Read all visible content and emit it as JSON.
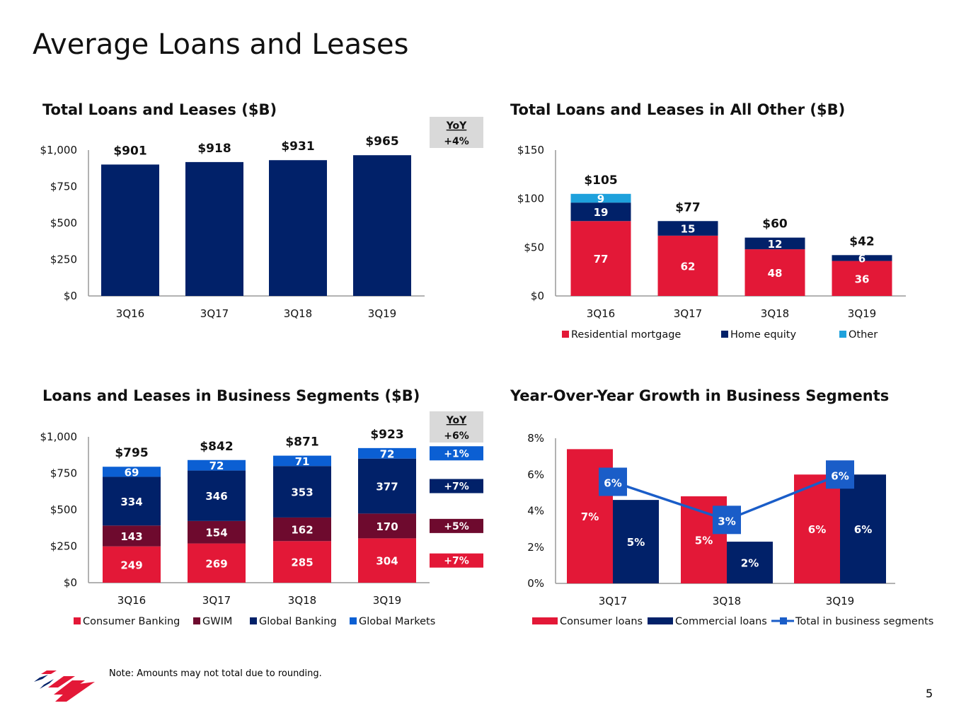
{
  "page": {
    "title": "Average Loans and Leases",
    "note": "Note: Amounts may not total due to rounding.",
    "page_number": "5"
  },
  "colors": {
    "red": "#e31837",
    "navy": "#012169",
    "maroon": "#6e0a2e",
    "blue": "#0b5fd3",
    "light_blue": "#1ea1dc",
    "line_blue": "#1a5dc8",
    "yoy_gray": "#d9d9d9"
  },
  "chart_data": [
    {
      "type": "bar",
      "title": "Total Loans and Leases ($B)",
      "categories": [
        "3Q16",
        "3Q17",
        "3Q18",
        "3Q19"
      ],
      "values": [
        901,
        918,
        931,
        965
      ],
      "value_labels": [
        "$901",
        "$918",
        "$931",
        "$965"
      ],
      "ylim": [
        0,
        1000
      ],
      "yticks": [
        "$0",
        "$250",
        "$500",
        "$750",
        "$1,000"
      ],
      "yoy": {
        "label": "YoY",
        "value": "+4%"
      },
      "color": "#012169"
    },
    {
      "type": "bar",
      "stacked": true,
      "title": "Total Loans and Leases in All Other ($B)",
      "categories": [
        "3Q16",
        "3Q17",
        "3Q18",
        "3Q19"
      ],
      "series": [
        {
          "name": "Residential mortgage",
          "values": [
            77,
            62,
            48,
            36
          ],
          "color": "#e31837"
        },
        {
          "name": "Home equity",
          "values": [
            19,
            15,
            12,
            6
          ],
          "color": "#012169"
        },
        {
          "name": "Other",
          "values": [
            9,
            0,
            0,
            0
          ],
          "color": "#1ea1dc"
        }
      ],
      "total_labels": [
        "$105",
        "$77",
        "$60",
        "$42"
      ],
      "ylim": [
        0,
        150
      ],
      "yticks": [
        "$0",
        "$50",
        "$100",
        "$150"
      ],
      "legend": "bottom"
    },
    {
      "type": "bar",
      "stacked": true,
      "title": "Loans and Leases in Business Segments ($B)",
      "categories": [
        "3Q16",
        "3Q17",
        "3Q18",
        "3Q19"
      ],
      "series": [
        {
          "name": "Consumer Banking",
          "values": [
            249,
            269,
            285,
            304
          ],
          "color": "#e31837",
          "yoy": "+7%"
        },
        {
          "name": "GWIM",
          "values": [
            143,
            154,
            162,
            170
          ],
          "color": "#6e0a2e",
          "yoy": "+5%"
        },
        {
          "name": "Global Banking",
          "values": [
            334,
            346,
            353,
            377
          ],
          "color": "#012169",
          "yoy": "+7%"
        },
        {
          "name": "Global Markets",
          "values": [
            69,
            72,
            71,
            72
          ],
          "color": "#0b5fd3",
          "yoy": "+1%"
        }
      ],
      "total_labels": [
        "$795",
        "$842",
        "$871",
        "$923"
      ],
      "ylim": [
        0,
        1000
      ],
      "yticks": [
        "$0",
        "$250",
        "$500",
        "$750",
        "$1,000"
      ],
      "yoy": {
        "label": "YoY",
        "value": "+6%"
      },
      "legend": "bottom"
    },
    {
      "type": "bar",
      "title": "Year-Over-Year Growth in Business Segments",
      "categories": [
        "3Q17",
        "3Q18",
        "3Q19"
      ],
      "series": [
        {
          "name": "Consumer loans",
          "values": [
            7.4,
            4.8,
            6.0
          ],
          "labels": [
            "7%",
            "5%",
            "6%"
          ],
          "color": "#e31837"
        },
        {
          "name": "Commercial loans",
          "values": [
            4.6,
            2.3,
            6.0
          ],
          "labels": [
            "5%",
            "2%",
            "6%"
          ],
          "color": "#012169"
        }
      ],
      "line": {
        "name": "Total in business segments",
        "values": [
          5.6,
          3.5,
          6.0
        ],
        "labels": [
          "6%",
          "3%",
          "6%"
        ],
        "color": "#1a5dc8"
      },
      "ylim": [
        0,
        8
      ],
      "yticks": [
        "0%",
        "2%",
        "4%",
        "6%",
        "8%"
      ],
      "legend": "bottom"
    }
  ]
}
